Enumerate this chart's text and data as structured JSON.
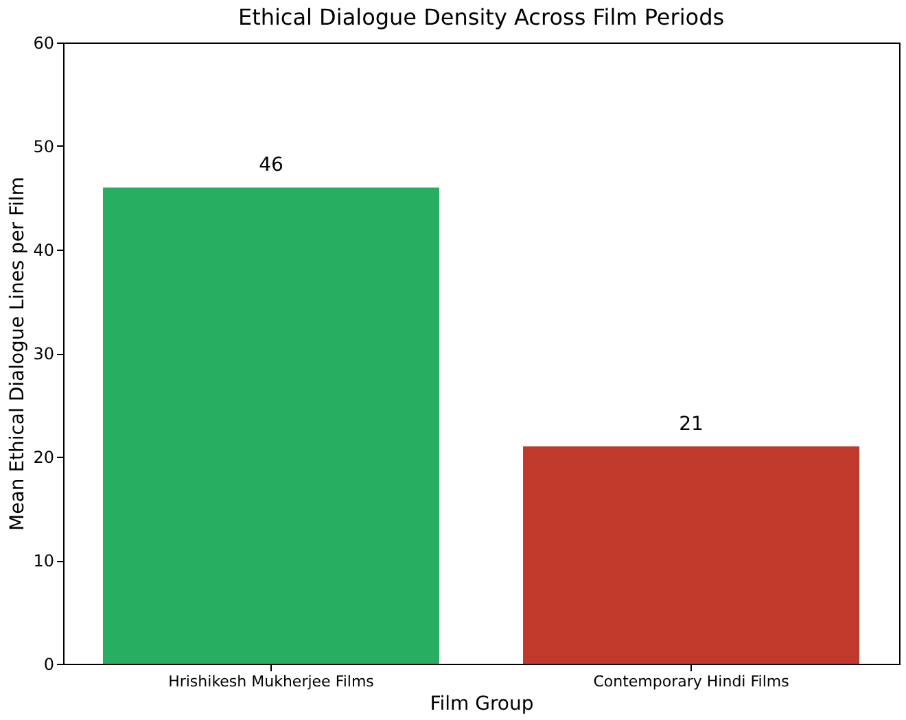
{
  "chart_data": {
    "type": "bar",
    "title": "Ethical Dialogue Density Across Film Periods",
    "xlabel": "Film Group",
    "ylabel": "Mean Ethical Dialogue Lines per Film",
    "categories": [
      "Hrishikesh Mukherjee Films",
      "Contemporary Hindi Films"
    ],
    "values": [
      46,
      21
    ],
    "colors": [
      "#27ae60",
      "#c0392b"
    ],
    "ylim": [
      0,
      60
    ],
    "yticks": [
      0,
      10,
      20,
      30,
      40,
      50,
      60
    ],
    "grid": false,
    "data_labels": true
  }
}
